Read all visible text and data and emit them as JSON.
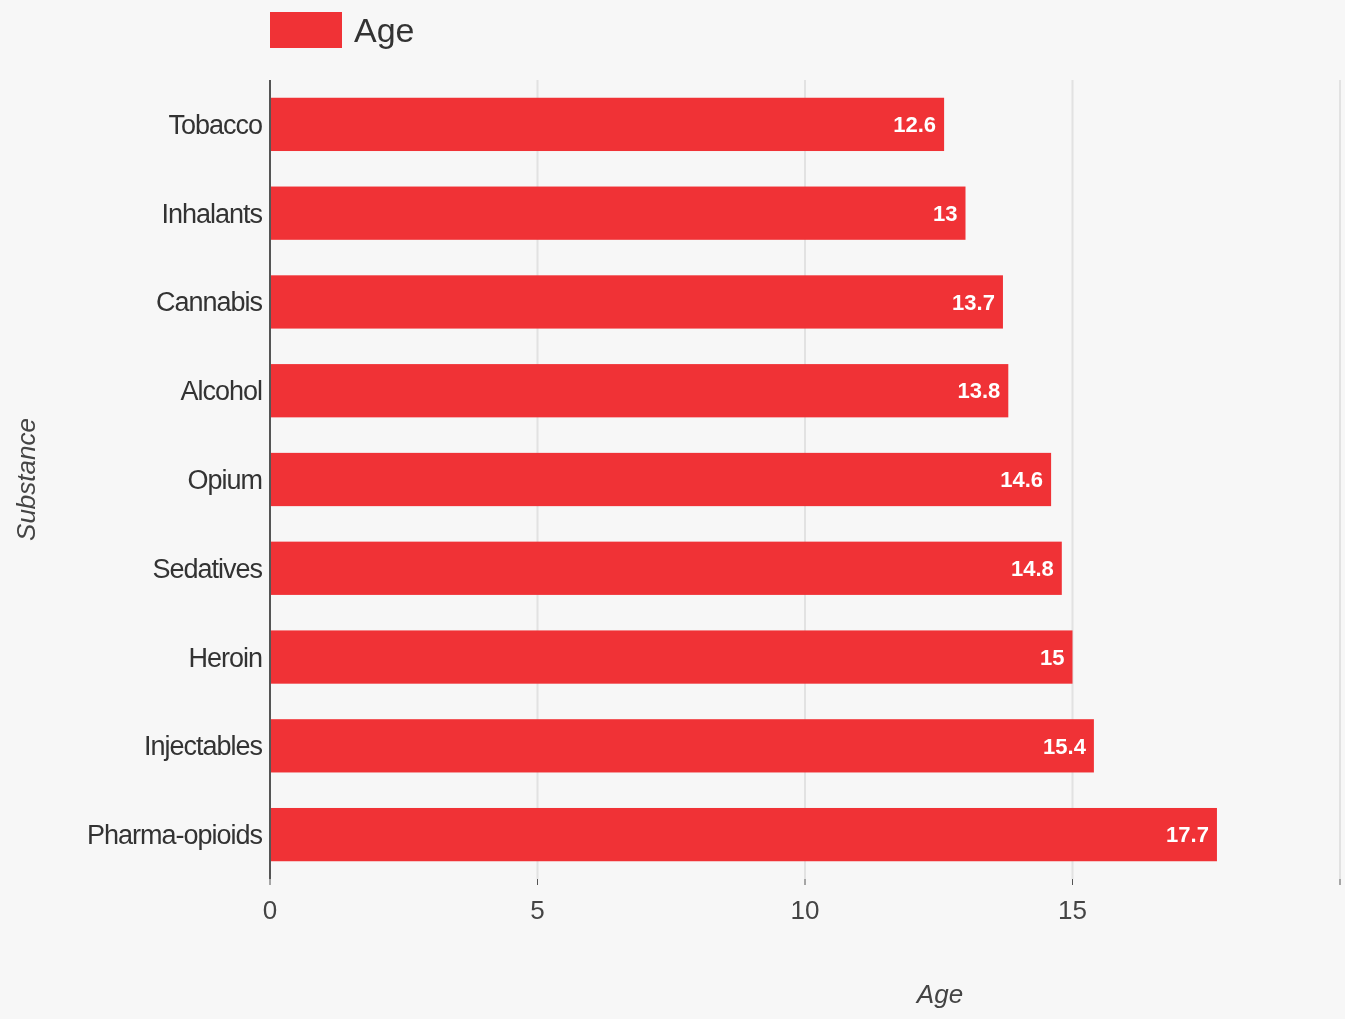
{
  "chart_data": {
    "type": "bar",
    "orientation": "horizontal",
    "xlabel": "Age",
    "ylabel": "Substance",
    "categories": [
      "Tobacco",
      "Inhalants",
      "Cannabis",
      "Alcohol",
      "Opium",
      "Sedatives",
      "Heroin",
      "Injectables",
      "Pharma-opioids"
    ],
    "series": [
      {
        "name": "Age",
        "color": "#f03236",
        "values": [
          12.6,
          13,
          13.7,
          13.8,
          14.6,
          14.8,
          15,
          15.4,
          17.7
        ]
      }
    ],
    "xlim": [
      0,
      20
    ],
    "xticks": [
      0,
      5,
      10,
      15,
      {
        "value": 20,
        "label": null
      }
    ],
    "grid": "x",
    "legend": "top left",
    "data_labels": true
  }
}
